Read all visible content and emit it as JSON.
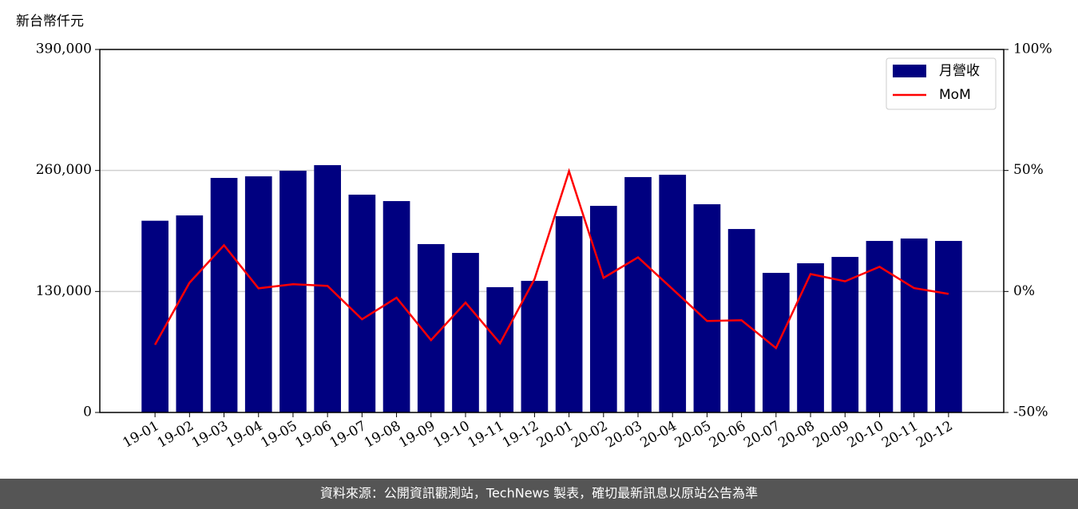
{
  "chart_data": {
    "type": "bar",
    "y_label": "新台幣仟元",
    "categories": [
      "19-01",
      "19-02",
      "19-03",
      "19-04",
      "19-05",
      "19-06",
      "19-07",
      "19-08",
      "19-09",
      "19-10",
      "19-11",
      "19-12",
      "20-01",
      "20-02",
      "20-03",
      "20-04",
      "20-05",
      "20-06",
      "20-07",
      "20-08",
      "20-09",
      "20-10",
      "20-11",
      "20-12"
    ],
    "series": [
      {
        "name": "月營收",
        "type": "bar",
        "color": "#000080",
        "values": [
          206000,
          211700,
          252000,
          253700,
          259700,
          265700,
          234000,
          227100,
          180900,
          171400,
          134600,
          141400,
          210900,
          222000,
          252900,
          255400,
          223700,
          197100,
          150000,
          160300,
          167100,
          184300,
          186900,
          184300
        ]
      },
      {
        "name": "MoM",
        "type": "line",
        "axis": "y2",
        "color": "#ff0000",
        "values": [
          -22.0,
          3.6,
          19.1,
          1.3,
          3.0,
          2.3,
          -11.5,
          -2.6,
          -20.1,
          -4.6,
          -21.4,
          5.1,
          49.7,
          5.6,
          14.1,
          1.0,
          -12.2,
          -11.9,
          -23.4,
          7.2,
          4.2,
          10.2,
          1.4,
          -1.0
        ]
      }
    ],
    "ylim": [
      0,
      390000
    ],
    "yticks": [
      0,
      {
        "value": 130000,
        "label": "130,000"
      },
      {
        "value": 260000,
        "label": "260,000"
      },
      {
        "value": 390000,
        "label": "390,000"
      }
    ],
    "y2lim": [
      -50,
      100
    ],
    "y2ticks": [
      {
        "value": -50,
        "label": "-50%"
      },
      {
        "value": 0,
        "label": "0%"
      },
      {
        "value": 50,
        "label": "50%"
      },
      {
        "value": 100,
        "label": "100%"
      }
    ],
    "grid": true,
    "legend": "upper right"
  },
  "footer": "資料來源：公開資訊觀測站，TechNews 製表，確切最新訊息以原站公告為準"
}
